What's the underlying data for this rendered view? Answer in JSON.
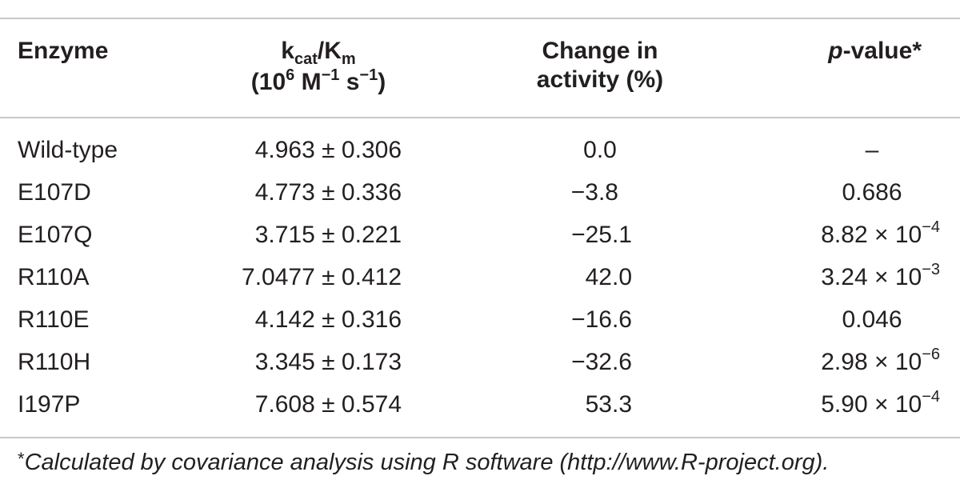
{
  "header": {
    "enzyme": "Enzyme",
    "kcat_main": "k",
    "kcat_sub": "cat",
    "kcat_slash": "/K",
    "km_sub": "m",
    "units_open": "(10",
    "units_exp6": "6",
    "units_m": " M",
    "units_expm1a": "−1",
    "units_s": " s",
    "units_expm1b": "−1",
    "units_close": ")",
    "change_line1": "Change in",
    "change_line2": "activity (%)",
    "p_italic": "p",
    "p_rest": "-value*"
  },
  "rows": [
    {
      "enzyme": "Wild-type",
      "kcat": "4.963 ± 0.306",
      "change": "0.0",
      "p_base": "–",
      "p_exp": ""
    },
    {
      "enzyme": "E107D",
      "kcat": "4.773 ± 0.336",
      "change": "−3.8",
      "p_base": "0.686",
      "p_exp": ""
    },
    {
      "enzyme": "E107Q",
      "kcat": "3.715 ± 0.221",
      "change": "−25.1",
      "p_base": "8.82 × 10",
      "p_exp": "−4"
    },
    {
      "enzyme": "R110A",
      "kcat": "7.0477 ± 0.412",
      "change": "42.0",
      "p_base": "3.24 × 10",
      "p_exp": "−3"
    },
    {
      "enzyme": "R110E",
      "kcat": "4.142 ± 0.316",
      "change": "−16.6",
      "p_base": "0.046",
      "p_exp": ""
    },
    {
      "enzyme": "R110H",
      "kcat": "3.345 ± 0.173",
      "change": "−32.6",
      "p_base": "2.98 × 10",
      "p_exp": "−6"
    },
    {
      "enzyme": "I197P",
      "kcat": "7.608 ± 0.574",
      "change": "53.3",
      "p_base": "5.90 × 10",
      "p_exp": "−4"
    }
  ],
  "footnote": {
    "star": "*",
    "text": "Calculated by covariance analysis using R software (http://www.R-project.org)."
  }
}
